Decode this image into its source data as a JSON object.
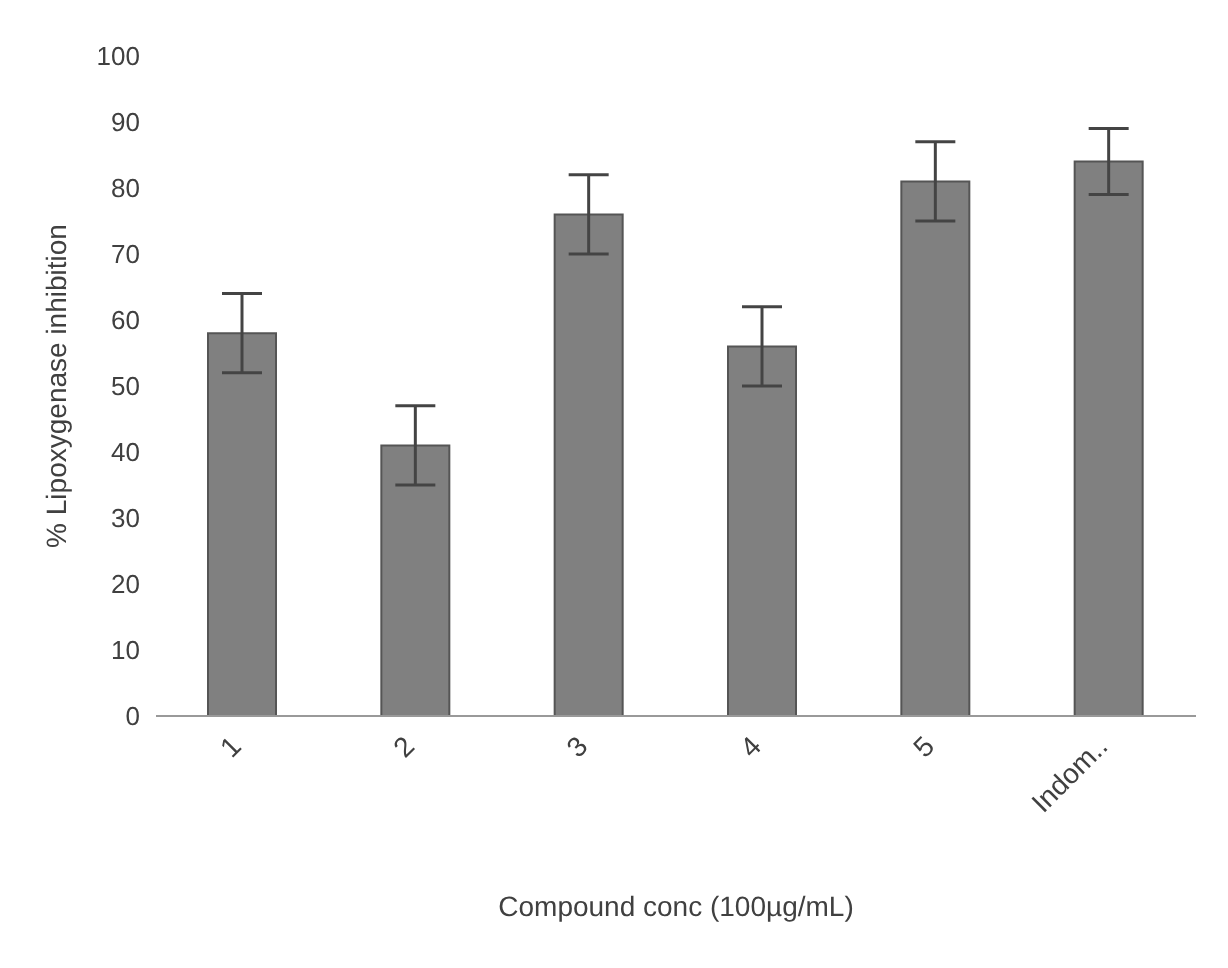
{
  "chart_data": {
    "type": "bar",
    "xlabel": "Compound conc (100µg/mL)",
    "ylabel": "% Lipoxygenase inhibition",
    "categories": [
      "1",
      "2",
      "3",
      "4",
      "5",
      "Indom.."
    ],
    "values": [
      58,
      41,
      76,
      56,
      81,
      84
    ],
    "errors": [
      6,
      6,
      6,
      6,
      6,
      5
    ],
    "color": "#808080",
    "ylim": [
      0,
      100
    ],
    "yticks": [
      0,
      10,
      20,
      30,
      40,
      50,
      60,
      70,
      80,
      90,
      100
    ],
    "grid": false
  }
}
